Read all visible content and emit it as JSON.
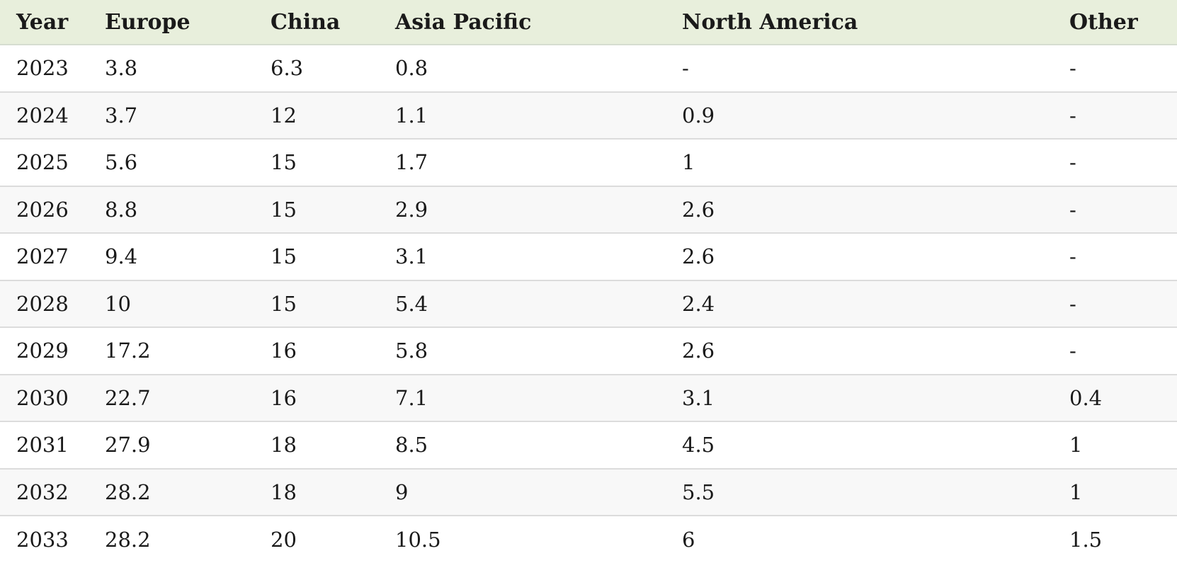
{
  "table": {
    "columns": [
      "Year",
      "Europe",
      "China",
      "Asia Pacific",
      "North America",
      "Other"
    ],
    "rows": [
      [
        "2023",
        "3.8",
        "6.3",
        "0.8",
        "-",
        "-"
      ],
      [
        "2024",
        "3.7",
        "12",
        "1.1",
        "0.9",
        "-"
      ],
      [
        "2025",
        "5.6",
        "15",
        "1.7",
        "1",
        "-"
      ],
      [
        "2026",
        "8.8",
        "15",
        "2.9",
        "2.6",
        "-"
      ],
      [
        "2027",
        "9.4",
        "15",
        "3.1",
        "2.6",
        "-"
      ],
      [
        "2028",
        "10",
        "15",
        "5.4",
        "2.4",
        "-"
      ],
      [
        "2029",
        "17.2",
        "16",
        "5.8",
        "2.6",
        "-"
      ],
      [
        "2030",
        "22.7",
        "16",
        "7.1",
        "3.1",
        "0.4"
      ],
      [
        "2031",
        "27.9",
        "18",
        "8.5",
        "4.5",
        "1"
      ],
      [
        "2032",
        "28.2",
        "18",
        "9",
        "5.5",
        "1"
      ],
      [
        "2033",
        "28.2",
        "20",
        "10.5",
        "6",
        "1.5"
      ]
    ]
  },
  "colors": {
    "header_background": "#e8efdc",
    "row_alternate_background": "#f8f8f8",
    "row_background": "#ffffff",
    "divider": "#dcdcdc"
  }
}
